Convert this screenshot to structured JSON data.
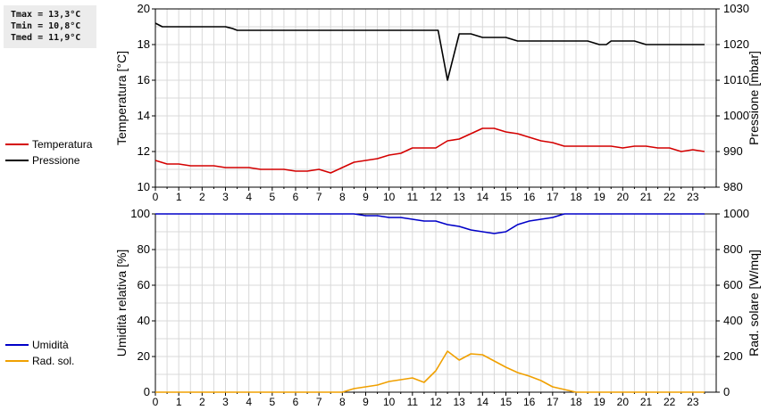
{
  "stats": {
    "tmax": "Tmax = 13,3°C",
    "tmin": "Tmin = 10,8°C",
    "tmed": "Tmed = 11,9°C"
  },
  "chart_data": [
    {
      "type": "line",
      "xlabel": "",
      "x_ticks": [
        0,
        1,
        2,
        3,
        4,
        5,
        6,
        7,
        8,
        9,
        10,
        11,
        12,
        13,
        14,
        15,
        16,
        17,
        18,
        19,
        20,
        21,
        22,
        23
      ],
      "xlim": [
        0,
        24
      ],
      "ylabel": "Temperatura [°C]",
      "ylim": [
        10,
        20
      ],
      "y_ticks": [
        10,
        12,
        14,
        16,
        18,
        20
      ],
      "ylabel_right": "Pressione [mbar]",
      "ylim_right": [
        980,
        1030
      ],
      "y_ticks_right": [
        980,
        990,
        1000,
        1010,
        1020,
        1030
      ],
      "grid": true,
      "legend_position": "left",
      "series": [
        {
          "name": "Temperatura",
          "axis": "left",
          "color": "#d40000",
          "x": [
            0,
            0.5,
            1,
            1.5,
            2,
            2.5,
            3,
            3.5,
            4,
            4.5,
            5,
            5.5,
            6,
            6.5,
            7,
            7.5,
            8,
            8.5,
            9,
            9.5,
            10,
            10.5,
            11,
            11.5,
            12,
            12.5,
            13,
            13.5,
            14,
            14.5,
            15,
            15.5,
            16,
            16.5,
            17,
            17.5,
            18,
            18.5,
            19,
            19.5,
            20,
            20.5,
            21,
            21.5,
            22,
            22.5,
            23,
            23.5
          ],
          "values": [
            11.5,
            11.3,
            11.3,
            11.2,
            11.2,
            11.2,
            11.1,
            11.1,
            11.1,
            11.0,
            11.0,
            11.0,
            10.9,
            10.9,
            11.0,
            10.8,
            11.1,
            11.4,
            11.5,
            11.6,
            11.8,
            11.9,
            12.2,
            12.2,
            12.2,
            12.6,
            12.7,
            13.0,
            13.3,
            13.3,
            13.1,
            13.0,
            12.8,
            12.6,
            12.5,
            12.3,
            12.3,
            12.3,
            12.3,
            12.3,
            12.2,
            12.3,
            12.3,
            12.2,
            12.2,
            12.0,
            12.1,
            12.0
          ]
        },
        {
          "name": "Pressione",
          "axis": "right",
          "color": "#000000",
          "x": [
            0,
            0.3,
            0.5,
            1,
            1.5,
            2,
            2.5,
            3,
            3.3,
            3.5,
            4,
            5,
            6,
            7,
            8,
            9,
            10,
            11,
            11.5,
            12,
            12.1,
            12.5,
            13,
            13.5,
            14,
            14.5,
            15,
            15.5,
            16,
            16.5,
            17,
            17.5,
            18,
            18.5,
            19,
            19.3,
            19.5,
            20,
            20.5,
            21,
            21.5,
            22,
            22.5,
            23,
            23.5
          ],
          "values": [
            1026,
            1025,
            1025,
            1025,
            1025,
            1025,
            1025,
            1025,
            1024.5,
            1024,
            1024,
            1024,
            1024,
            1024,
            1024,
            1024,
            1024,
            1024,
            1024,
            1024,
            1024,
            1010,
            1023,
            1023,
            1022,
            1022,
            1022,
            1021,
            1021,
            1021,
            1021,
            1021,
            1021,
            1021,
            1020,
            1020,
            1021,
            1021,
            1021,
            1020,
            1020,
            1020,
            1020,
            1020,
            1020
          ]
        }
      ]
    },
    {
      "type": "line",
      "xlabel": "",
      "x_ticks": [
        0,
        1,
        2,
        3,
        4,
        5,
        6,
        7,
        8,
        9,
        10,
        11,
        12,
        13,
        14,
        15,
        16,
        17,
        18,
        19,
        20,
        21,
        22,
        23
      ],
      "xlim": [
        0,
        24
      ],
      "ylabel": "Umidità relativa [%]",
      "ylim": [
        0,
        100
      ],
      "y_ticks": [
        0,
        20,
        40,
        60,
        80,
        100
      ],
      "ylabel_right": "Rad. solare [W/mq]",
      "ylim_right": [
        0,
        1000
      ],
      "y_ticks_right": [
        0,
        200,
        400,
        600,
        800,
        1000
      ],
      "grid": true,
      "legend_position": "left",
      "series": [
        {
          "name": "Umidità",
          "axis": "left",
          "color": "#0000c8",
          "x": [
            0,
            1,
            2,
            3,
            4,
            5,
            6,
            7,
            8,
            8.5,
            9,
            9.5,
            10,
            10.5,
            11,
            11.5,
            12,
            12.5,
            13,
            13.5,
            14,
            14.5,
            15,
            15.5,
            16,
            16.5,
            17,
            17.5,
            18,
            19,
            20,
            21,
            22,
            23,
            23.5
          ],
          "values": [
            100,
            100,
            100,
            100,
            100,
            100,
            100,
            100,
            100,
            100,
            99,
            99,
            98,
            98,
            97,
            96,
            96,
            94,
            93,
            91,
            90,
            89,
            90,
            94,
            96,
            97,
            98,
            100,
            100,
            100,
            100,
            100,
            100,
            100,
            100
          ]
        },
        {
          "name": "Rad. sol.",
          "axis": "right",
          "color": "#f0a000",
          "x": [
            0,
            1,
            2,
            3,
            4,
            5,
            6,
            7,
            8,
            8.5,
            9,
            9.5,
            10,
            10.5,
            11,
            11.5,
            12,
            12.5,
            13,
            13.5,
            14,
            14.5,
            15,
            15.5,
            16,
            16.5,
            17,
            17.5,
            18,
            19,
            20,
            21,
            22,
            23,
            23.5
          ],
          "values": [
            0,
            0,
            0,
            0,
            0,
            0,
            0,
            0,
            0,
            20,
            30,
            40,
            60,
            70,
            80,
            55,
            120,
            230,
            180,
            215,
            210,
            175,
            140,
            110,
            90,
            65,
            30,
            15,
            0,
            0,
            0,
            0,
            0,
            0,
            0
          ]
        }
      ]
    }
  ]
}
